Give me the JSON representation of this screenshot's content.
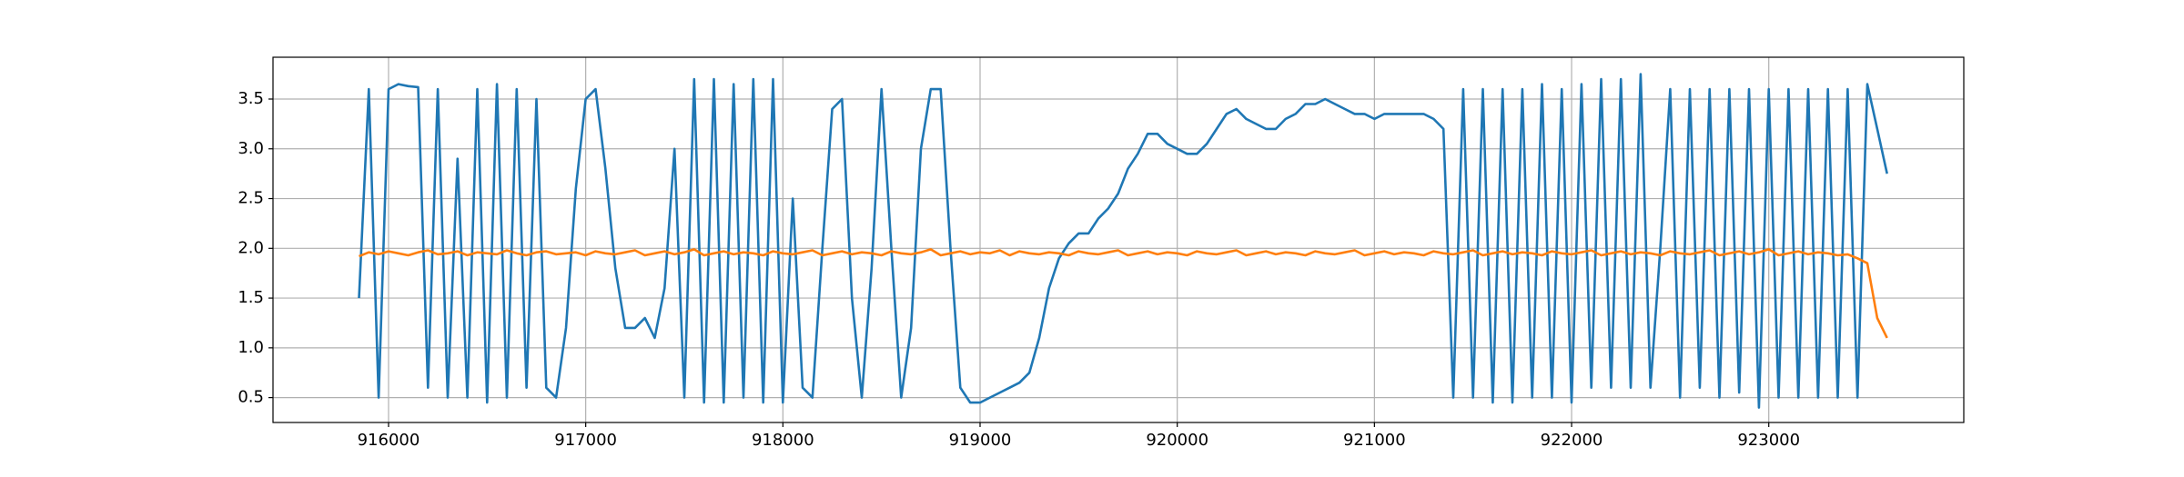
{
  "chart_data": {
    "type": "line",
    "x": [
      915850,
      915900,
      915950,
      916000,
      916050,
      916100,
      916150,
      916200,
      916250,
      916300,
      916350,
      916400,
      916450,
      916500,
      916550,
      916600,
      916650,
      916700,
      916750,
      916800,
      916850,
      916900,
      916950,
      917000,
      917050,
      917100,
      917150,
      917200,
      917250,
      917300,
      917350,
      917400,
      917450,
      917500,
      917550,
      917600,
      917650,
      917700,
      917750,
      917800,
      917850,
      917900,
      917950,
      918000,
      918050,
      918100,
      918150,
      918200,
      918250,
      918300,
      918350,
      918400,
      918450,
      918500,
      918550,
      918600,
      918650,
      918700,
      918750,
      918800,
      918850,
      918900,
      918950,
      919000,
      919050,
      919100,
      919150,
      919200,
      919250,
      919300,
      919350,
      919400,
      919450,
      919500,
      919550,
      919600,
      919650,
      919700,
      919750,
      919800,
      919850,
      919900,
      919950,
      920000,
      920050,
      920100,
      920150,
      920200,
      920250,
      920300,
      920350,
      920400,
      920450,
      920500,
      920550,
      920600,
      920650,
      920700,
      920750,
      920800,
      920850,
      920900,
      920950,
      921000,
      921050,
      921100,
      921150,
      921200,
      921250,
      921300,
      921350,
      921400,
      921450,
      921500,
      921550,
      921600,
      921650,
      921700,
      921750,
      921800,
      921850,
      921900,
      921950,
      922000,
      922050,
      922100,
      922150,
      922200,
      922250,
      922300,
      922350,
      922400,
      922450,
      922500,
      922550,
      922600,
      922650,
      922700,
      922750,
      922800,
      922850,
      922900,
      922950,
      923000,
      923050,
      923100,
      923150,
      923200,
      923250,
      923300,
      923350,
      923400,
      923450,
      923500,
      923550,
      923600
    ],
    "series": [
      {
        "color": "#1f77b4",
        "values": [
          1.5,
          3.6,
          0.5,
          3.6,
          3.65,
          3.63,
          3.62,
          0.6,
          3.6,
          0.5,
          2.9,
          0.5,
          3.6,
          0.45,
          3.65,
          0.5,
          3.6,
          0.6,
          3.5,
          0.6,
          0.5,
          1.2,
          2.6,
          3.5,
          3.6,
          2.8,
          1.8,
          1.2,
          1.2,
          1.3,
          1.1,
          1.6,
          3.0,
          0.5,
          3.7,
          0.45,
          3.7,
          0.45,
          3.65,
          0.5,
          3.7,
          0.45,
          3.7,
          0.45,
          2.5,
          0.6,
          0.5,
          2.0,
          3.4,
          3.5,
          1.5,
          0.5,
          1.8,
          3.6,
          2.0,
          0.5,
          1.2,
          3.0,
          3.6,
          3.6,
          2.0,
          0.6,
          0.45,
          0.45,
          0.5,
          0.55,
          0.6,
          0.65,
          0.75,
          1.1,
          1.6,
          1.9,
          2.05,
          2.15,
          2.15,
          2.3,
          2.4,
          2.55,
          2.8,
          2.95,
          3.15,
          3.15,
          3.05,
          3.0,
          2.95,
          2.95,
          3.05,
          3.2,
          3.35,
          3.4,
          3.3,
          3.25,
          3.2,
          3.2,
          3.3,
          3.35,
          3.45,
          3.45,
          3.5,
          3.45,
          3.4,
          3.35,
          3.35,
          3.3,
          3.35,
          3.35,
          3.35,
          3.35,
          3.35,
          3.3,
          3.2,
          0.5,
          3.6,
          0.5,
          3.6,
          0.45,
          3.6,
          0.45,
          3.6,
          0.5,
          3.65,
          0.5,
          3.6,
          0.45,
          3.65,
          0.6,
          3.7,
          0.6,
          3.7,
          0.6,
          3.75,
          0.6,
          2.0,
          3.6,
          0.5,
          3.6,
          0.6,
          3.6,
          0.5,
          3.6,
          0.55,
          3.6,
          0.4,
          3.6,
          0.5,
          3.6,
          0.5,
          3.6,
          0.5,
          3.6,
          0.5,
          3.6,
          0.5,
          3.65,
          3.2,
          2.75
        ]
      },
      {
        "color": "#ff7f0e",
        "values": [
          1.92,
          1.96,
          1.94,
          1.97,
          1.95,
          1.93,
          1.96,
          1.98,
          1.94,
          1.95,
          1.97,
          1.93,
          1.96,
          1.95,
          1.94,
          1.98,
          1.95,
          1.93,
          1.96,
          1.97,
          1.94,
          1.95,
          1.96,
          1.93,
          1.97,
          1.95,
          1.94,
          1.96,
          1.98,
          1.93,
          1.95,
          1.97,
          1.94,
          1.96,
          1.99,
          1.93,
          1.95,
          1.97,
          1.94,
          1.96,
          1.95,
          1.93,
          1.97,
          1.95,
          1.94,
          1.96,
          1.98,
          1.93,
          1.95,
          1.97,
          1.94,
          1.96,
          1.95,
          1.93,
          1.97,
          1.95,
          1.94,
          1.96,
          1.99,
          1.93,
          1.95,
          1.97,
          1.94,
          1.96,
          1.95,
          1.98,
          1.93,
          1.97,
          1.95,
          1.94,
          1.96,
          1.95,
          1.93,
          1.97,
          1.95,
          1.94,
          1.96,
          1.98,
          1.93,
          1.95,
          1.97,
          1.94,
          1.96,
          1.95,
          1.93,
          1.97,
          1.95,
          1.94,
          1.96,
          1.98,
          1.93,
          1.95,
          1.97,
          1.94,
          1.96,
          1.95,
          1.93,
          1.97,
          1.95,
          1.94,
          1.96,
          1.98,
          1.93,
          1.95,
          1.97,
          1.94,
          1.96,
          1.95,
          1.93,
          1.97,
          1.95,
          1.94,
          1.96,
          1.98,
          1.93,
          1.95,
          1.97,
          1.94,
          1.96,
          1.95,
          1.93,
          1.97,
          1.95,
          1.94,
          1.96,
          1.98,
          1.93,
          1.95,
          1.97,
          1.94,
          1.96,
          1.95,
          1.93,
          1.97,
          1.95,
          1.94,
          1.96,
          1.98,
          1.93,
          1.95,
          1.97,
          1.94,
          1.96,
          1.99,
          1.93,
          1.95,
          1.97,
          1.94,
          1.96,
          1.95,
          1.93,
          1.94,
          1.9,
          1.85,
          1.3,
          1.1
        ]
      }
    ],
    "xlim": [
      915414,
      923989
    ],
    "ylim": [
      0.25,
      3.92
    ],
    "xticks": [
      916000,
      917000,
      918000,
      919000,
      920000,
      921000,
      922000,
      923000
    ],
    "yticks": [
      0.5,
      {
        "value": 1,
        "label": "1.0"
      },
      1.5,
      {
        "value": 2,
        "label": "2.0"
      },
      2.5,
      {
        "value": 3,
        "label": "3.0"
      },
      3.5
    ],
    "grid": true
  }
}
